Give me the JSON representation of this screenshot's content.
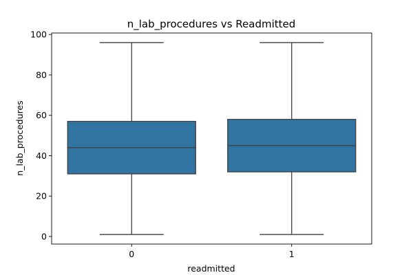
{
  "chart_data": {
    "type": "box",
    "title": "n_lab_procedures vs Readmitted",
    "xlabel": "readmitted",
    "ylabel": "n_lab_procedures",
    "categories": [
      "0",
      "1"
    ],
    "ylim": [
      -3.75,
      100.75
    ],
    "yticks": [
      0,
      20,
      40,
      60,
      80,
      100
    ],
    "yticklabels": [
      "0",
      "20",
      "40",
      "60",
      "80",
      "100"
    ],
    "box_color": "#3274a1",
    "line_color": "#3d3d3d",
    "grid": false,
    "boxes": [
      {
        "category": "0",
        "whisker_low": 1,
        "q1": 31,
        "median": 44,
        "q3": 57,
        "whisker_high": 96
      },
      {
        "category": "1",
        "whisker_low": 1,
        "q1": 32,
        "median": 45,
        "q3": 58,
        "whisker_high": 96
      }
    ]
  }
}
